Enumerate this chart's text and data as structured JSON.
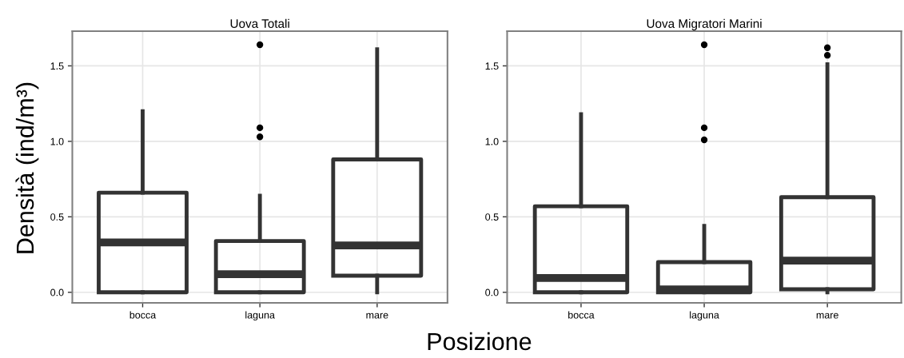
{
  "chart_data": [
    {
      "type": "box",
      "title": "Uova Totali",
      "ylabel": "Densità (ind/m³)",
      "xlabel": "Posizione",
      "categories": [
        "bocca",
        "laguna",
        "mare"
      ],
      "color": "#333333",
      "boxes": [
        {
          "low": 0,
          "q1": 0,
          "median": 0.33,
          "q3": 0.66,
          "high": 1.2
        },
        {
          "low": 0,
          "q1": 0,
          "median": 0.12,
          "q3": 0.34,
          "high": 0.64,
          "outliers": [
            1.03,
            1.09,
            1.64
          ]
        },
        {
          "low": 0,
          "q1": 0.11,
          "median": 0.31,
          "q3": 0.88,
          "high": 1.61
        }
      ],
      "ylim": [
        -0.07,
        1.73
      ],
      "yticks": [
        {
          "value": 0,
          "label": "0.0"
        },
        {
          "value": 0.5,
          "label": "0.5"
        },
        {
          "value": 1,
          "label": "1.0"
        },
        {
          "value": 1.5,
          "label": "1.5"
        }
      ],
      "grid": true
    },
    {
      "type": "box",
      "title": "Uova Migratori Marini",
      "categories": [
        "bocca",
        "laguna",
        "mare"
      ],
      "color": "#333333",
      "boxes": [
        {
          "low": 0,
          "q1": 0,
          "median": 0.095,
          "q3": 0.57,
          "high": 1.18
        },
        {
          "low": 0,
          "q1": 0,
          "median": 0.02,
          "q3": 0.2,
          "high": 0.44,
          "outliers": [
            1.01,
            1.09,
            1.64
          ]
        },
        {
          "low": 0,
          "q1": 0.02,
          "median": 0.21,
          "q3": 0.63,
          "high": 1.51,
          "outliers": [
            1.57,
            1.62
          ]
        }
      ],
      "ylim": [
        -0.07,
        1.73
      ],
      "yticks": [
        {
          "value": 0,
          "label": "0.0"
        },
        0.5,
        {
          "value": 1,
          "label": "1.0"
        },
        1.5
      ],
      "grid": true
    }
  ]
}
